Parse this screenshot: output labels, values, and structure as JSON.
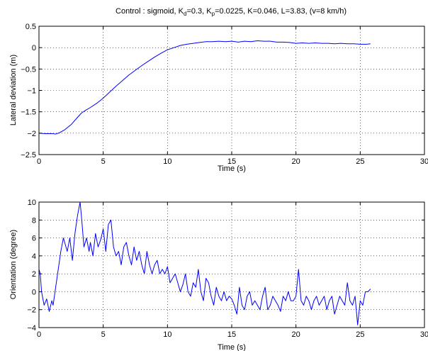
{
  "colors": {
    "series": "#0000ff",
    "axes": "#000000",
    "grid": "#000000",
    "background": "#ffffff"
  },
  "chart_data": [
    {
      "type": "line",
      "title": {
        "prefix": "Control : sigmoid, K",
        "kd_sub": "d",
        "kd_val": "=0.3, K",
        "kp_sub": "p",
        "rest": "=0.0225, K=0.046, L=3.83, (v=8 km/h)"
      },
      "xlabel": "Time (s)",
      "ylabel": "Lateral deviation (m)",
      "xlim": [
        0,
        30
      ],
      "ylim": [
        -2.5,
        0.5
      ],
      "xticks": [
        0,
        5,
        10,
        15,
        20,
        25,
        30
      ],
      "yticks": [
        -2.5,
        -2,
        -1.5,
        -1,
        -0.5,
        0,
        0.5
      ],
      "xtick_labels": [
        "0",
        "5",
        "10",
        "15",
        "20",
        "25",
        "30"
      ],
      "ytick_labels": [
        "−2.5",
        "−2",
        "−1.5",
        "−1",
        "−0.5",
        "0",
        "0.5"
      ],
      "grid": true,
      "series": [
        {
          "x": [
            0,
            0.5,
            1.0,
            1.3,
            1.6,
            2.0,
            2.5,
            3.0,
            3.3,
            3.6,
            4.0,
            4.5,
            5.0,
            5.5,
            6.0,
            6.5,
            7.0,
            7.5,
            8.0,
            8.5,
            9.0,
            9.5,
            10.0,
            10.5,
            11.0,
            11.5,
            12.0,
            12.5,
            13.0,
            13.5,
            14.0,
            14.5,
            15.0,
            15.5,
            16.0,
            16.5,
            17.0,
            17.5,
            18.0,
            18.5,
            19.0,
            19.5,
            20.0,
            20.5,
            21.0,
            21.5,
            22.0,
            22.5,
            23.0,
            23.5,
            24.0,
            24.5,
            25.0,
            25.5,
            25.8
          ],
          "y": [
            -2.0,
            -2.01,
            -2.01,
            -2.02,
            -1.99,
            -1.92,
            -1.8,
            -1.63,
            -1.53,
            -1.47,
            -1.4,
            -1.3,
            -1.18,
            -1.04,
            -0.9,
            -0.77,
            -0.64,
            -0.53,
            -0.42,
            -0.32,
            -0.22,
            -0.13,
            -0.05,
            0.0,
            0.05,
            0.08,
            0.1,
            0.12,
            0.14,
            0.14,
            0.15,
            0.14,
            0.15,
            0.13,
            0.15,
            0.14,
            0.16,
            0.15,
            0.15,
            0.13,
            0.13,
            0.12,
            0.1,
            0.11,
            0.1,
            0.11,
            0.1,
            0.1,
            0.09,
            0.1,
            0.09,
            0.09,
            0.08,
            0.08,
            0.09
          ]
        }
      ]
    },
    {
      "type": "line",
      "xlabel": "Time (s)",
      "ylabel": "Orientation (degree)",
      "xlim": [
        0,
        30
      ],
      "ylim": [
        -4,
        10
      ],
      "xticks": [
        0,
        5,
        10,
        15,
        20,
        25,
        30
      ],
      "yticks": [
        -4,
        -2,
        0,
        2,
        4,
        6,
        8,
        10
      ],
      "xtick_labels": [
        "0",
        "5",
        "10",
        "15",
        "20",
        "25",
        "30"
      ],
      "ytick_labels": [
        "−4",
        "−2",
        "0",
        "2",
        "4",
        "6",
        "8",
        "10"
      ],
      "grid": true,
      "series": [
        {
          "x": [
            0,
            0.1,
            0.2,
            0.4,
            0.6,
            0.8,
            1.0,
            1.1,
            1.3,
            1.5,
            1.7,
            1.9,
            2.0,
            2.2,
            2.4,
            2.6,
            2.8,
            3.0,
            3.2,
            3.3,
            3.5,
            3.7,
            3.9,
            4.0,
            4.2,
            4.4,
            4.6,
            4.8,
            5.0,
            5.2,
            5.4,
            5.6,
            5.8,
            6.0,
            6.2,
            6.4,
            6.6,
            6.8,
            7.0,
            7.2,
            7.4,
            7.6,
            7.8,
            8.0,
            8.2,
            8.4,
            8.6,
            8.8,
            9.0,
            9.2,
            9.4,
            9.6,
            9.8,
            10.0,
            10.2,
            10.4,
            10.6,
            10.8,
            11.0,
            11.2,
            11.4,
            11.6,
            11.8,
            12.0,
            12.2,
            12.4,
            12.6,
            12.8,
            13.0,
            13.2,
            13.4,
            13.6,
            13.8,
            14.0,
            14.2,
            14.4,
            14.6,
            14.8,
            15.0,
            15.2,
            15.4,
            15.6,
            15.8,
            16.0,
            16.2,
            16.4,
            16.6,
            16.8,
            17.0,
            17.2,
            17.4,
            17.6,
            17.8,
            18.0,
            18.2,
            18.4,
            18.6,
            18.8,
            19.0,
            19.2,
            19.4,
            19.6,
            19.8,
            20.0,
            20.2,
            20.4,
            20.6,
            20.8,
            21.0,
            21.2,
            21.4,
            21.6,
            21.8,
            22.0,
            22.2,
            22.4,
            22.6,
            22.8,
            23.0,
            23.2,
            23.4,
            23.6,
            23.8,
            24.0,
            24.2,
            24.4,
            24.6,
            24.8,
            25.0,
            25.2,
            25.4,
            25.6,
            25.8
          ],
          "y": [
            2.5,
            2.0,
            0.0,
            -1.5,
            -0.8,
            -2.2,
            -1.0,
            -1.5,
            0.5,
            2.5,
            4.5,
            6.0,
            5.5,
            4.5,
            6.0,
            3.5,
            6.5,
            8.5,
            10.0,
            8.5,
            5.0,
            6.0,
            4.5,
            5.5,
            4.0,
            6.5,
            5.0,
            5.8,
            7.0,
            4.5,
            7.5,
            8.0,
            5.0,
            4.0,
            4.5,
            3.0,
            5.0,
            5.5,
            4.0,
            3.0,
            5.0,
            3.5,
            4.5,
            3.0,
            2.0,
            4.5,
            3.0,
            2.0,
            3.0,
            3.5,
            2.0,
            2.5,
            2.0,
            2.8,
            1.0,
            1.5,
            2.0,
            1.0,
            0.0,
            0.8,
            2.0,
            0.0,
            -0.5,
            1.0,
            0.5,
            2.5,
            0.0,
            -1.0,
            1.5,
            1.0,
            -0.5,
            -1.5,
            0.5,
            -0.5,
            -1.0,
            0.0,
            -1.0,
            -0.5,
            -0.8,
            -1.5,
            -2.5,
            0.5,
            -1.5,
            -2.0,
            -0.5,
            0.0,
            -1.5,
            -1.0,
            -1.5,
            -2.0,
            -0.5,
            0.5,
            -2.0,
            -1.5,
            -0.5,
            -1.0,
            -1.5,
            -2.2,
            -0.5,
            -1.0,
            0.0,
            -1.0,
            -1.0,
            -0.5,
            2.5,
            -1.0,
            -1.5,
            -0.5,
            -1.0,
            -2.0,
            -1.0,
            -0.5,
            -1.5,
            -1.0,
            -0.5,
            -2.0,
            -1.0,
            -0.5,
            -2.5,
            -1.5,
            -0.5,
            -1.0,
            -1.5,
            1.0,
            -1.0,
            -1.5,
            -0.5,
            -3.7,
            -1.0,
            -1.5,
            0.0,
            0.0,
            0.3
          ]
        }
      ]
    }
  ]
}
